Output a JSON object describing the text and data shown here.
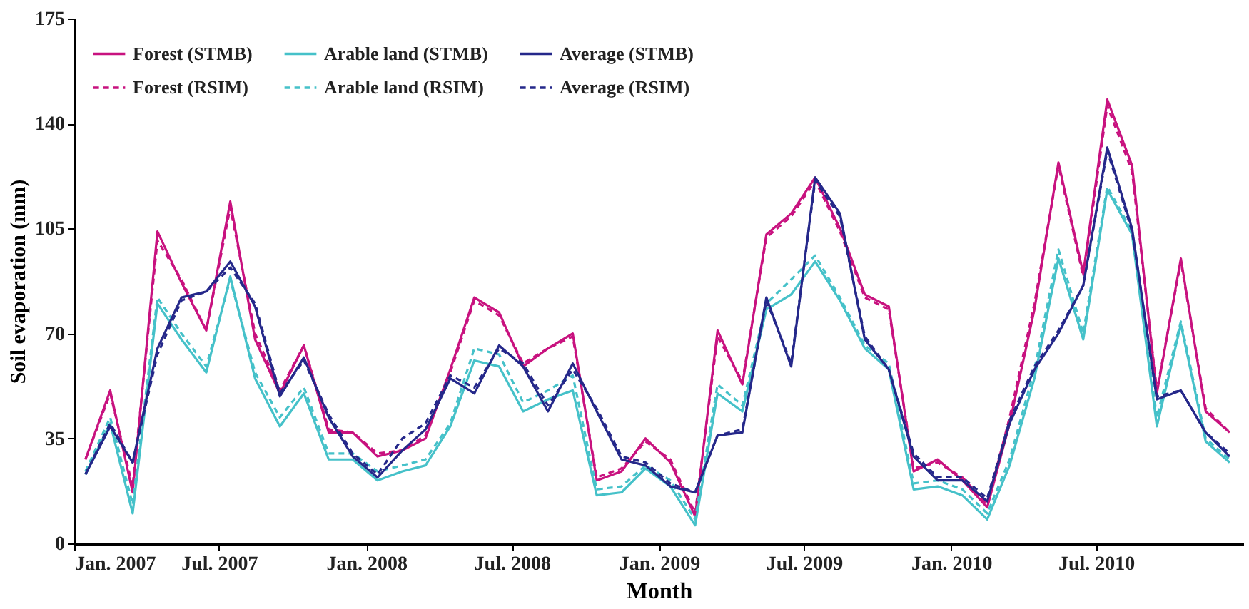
{
  "chart_data": {
    "type": "line",
    "xlabel": "Month",
    "ylabel": "Soil evaporation (mm)",
    "x": [
      "2007-01-15",
      "2007-02-15",
      "2007-03-15",
      "2007-04-15",
      "2007-05-15",
      "2007-06-15",
      "2007-07-15",
      "2007-08-15",
      "2007-09-15",
      "2007-10-15",
      "2007-11-15",
      "2007-12-15",
      "2008-01-15",
      "2008-02-15",
      "2008-03-15",
      "2008-04-15",
      "2008-05-15",
      "2008-06-15",
      "2008-07-15",
      "2008-08-15",
      "2008-09-15",
      "2008-10-15",
      "2008-11-15",
      "2008-12-15",
      "2009-01-15",
      "2009-02-15",
      "2009-03-15",
      "2009-04-15",
      "2009-05-15",
      "2009-06-15",
      "2009-07-15",
      "2009-08-15",
      "2009-09-15",
      "2009-10-15",
      "2009-11-15",
      "2009-12-15",
      "2010-01-15",
      "2010-02-15",
      "2010-03-15",
      "2010-04-15",
      "2010-05-15",
      "2010-06-15",
      "2010-07-15",
      "2010-08-15",
      "2010-09-15",
      "2010-10-15",
      "2010-11-15",
      "2010-12-15"
    ],
    "series": [
      {
        "name": "Forest (STMB)",
        "color": "#c8127f",
        "line_style": "solid",
        "values": [
          28,
          51,
          17,
          104,
          87,
          71,
          114,
          68,
          50,
          66,
          37,
          37,
          29,
          31,
          35,
          58,
          82,
          77,
          59,
          65,
          70,
          21,
          24,
          35,
          27,
          9,
          71,
          53,
          103,
          110,
          122,
          105,
          83,
          79,
          24,
          28,
          21,
          12,
          40,
          78,
          127,
          90,
          148,
          126,
          50,
          95,
          44,
          37
        ]
      },
      {
        "name": "Forest (RSIM)",
        "color": "#c8127f",
        "line_style": "dashed",
        "values": [
          28,
          50,
          19,
          101,
          88,
          71,
          112,
          70,
          51,
          66,
          38,
          37,
          30,
          31,
          36,
          57,
          81,
          76,
          60,
          65,
          69,
          22,
          25,
          34,
          28,
          10,
          69,
          54,
          102,
          109,
          121,
          104,
          82,
          78,
          25,
          27,
          22,
          13,
          42,
          80,
          126,
          89,
          146,
          124,
          51,
          94,
          45,
          37
        ]
      },
      {
        "name": "Arable land (STMB)",
        "color": "#45c1c9",
        "line_style": "solid",
        "values": [
          23,
          40,
          10,
          80,
          68,
          57,
          89,
          55,
          39,
          50,
          28,
          28,
          21,
          24,
          26,
          39,
          61,
          59,
          44,
          48,
          51,
          16,
          17,
          25,
          19,
          6,
          50,
          44,
          78,
          83,
          94,
          81,
          65,
          58,
          18,
          19,
          16,
          8,
          26,
          55,
          95,
          68,
          118,
          103,
          39,
          73,
          34,
          27
        ]
      },
      {
        "name": "Arable land (RSIM)",
        "color": "#45c1c9",
        "line_style": "dashed",
        "values": [
          24,
          42,
          13,
          82,
          70,
          59,
          88,
          57,
          42,
          52,
          30,
          30,
          24,
          26,
          28,
          40,
          65,
          63,
          47,
          51,
          56,
          18,
          19,
          26,
          21,
          8,
          53,
          46,
          80,
          88,
          96,
          82,
          66,
          60,
          20,
          21,
          18,
          10,
          28,
          58,
          98,
          70,
          119,
          104,
          42,
          74,
          35,
          28
        ]
      },
      {
        "name": "Average (STMB)",
        "color": "#25288a",
        "line_style": "solid",
        "values": [
          23,
          39,
          27,
          65,
          82,
          84,
          94,
          79,
          49,
          62,
          42,
          29,
          22,
          31,
          38,
          55,
          50,
          66,
          59,
          44,
          60,
          44,
          28,
          26,
          19,
          17,
          36,
          37,
          82,
          59,
          122,
          110,
          68,
          58,
          29,
          21,
          21,
          14,
          40,
          58,
          70,
          86,
          132,
          105,
          48,
          51,
          37,
          29
        ]
      },
      {
        "name": "Average (RSIM)",
        "color": "#25288a",
        "line_style": "dashed",
        "values": [
          23,
          40,
          27,
          63,
          81,
          84,
          92,
          80,
          50,
          61,
          43,
          30,
          23,
          35,
          40,
          56,
          52,
          65,
          60,
          46,
          58,
          45,
          29,
          27,
          20,
          17,
          36,
          38,
          81,
          60,
          121,
          109,
          69,
          58,
          30,
          22,
          22,
          15,
          41,
          59,
          71,
          86,
          131,
          104,
          49,
          51,
          37,
          30
        ]
      }
    ],
    "xlim": [
      "2007-01-01",
      "2011-01-01"
    ],
    "xticks": [
      {
        "value": "2007-01-01",
        "label": "Jan. 2007"
      },
      {
        "value": "2007-07-01",
        "label": "Jul. 2007"
      },
      {
        "value": "2008-01-01",
        "label": "Jan. 2008"
      },
      {
        "value": "2008-07-01",
        "label": "Jul. 2008"
      },
      {
        "value": "2009-01-01",
        "label": "Jan. 2009"
      },
      {
        "value": "2009-07-01",
        "label": "Jul. 2009"
      },
      {
        "value": "2010-01-01",
        "label": "Jan. 2010"
      },
      {
        "value": "2010-07-01",
        "label": "Jul. 2010"
      }
    ],
    "ylim": [
      0,
      175
    ],
    "yticks": [
      0,
      35,
      70,
      105,
      140,
      175
    ],
    "grid": false,
    "legend": "top left",
    "marker": "none"
  }
}
